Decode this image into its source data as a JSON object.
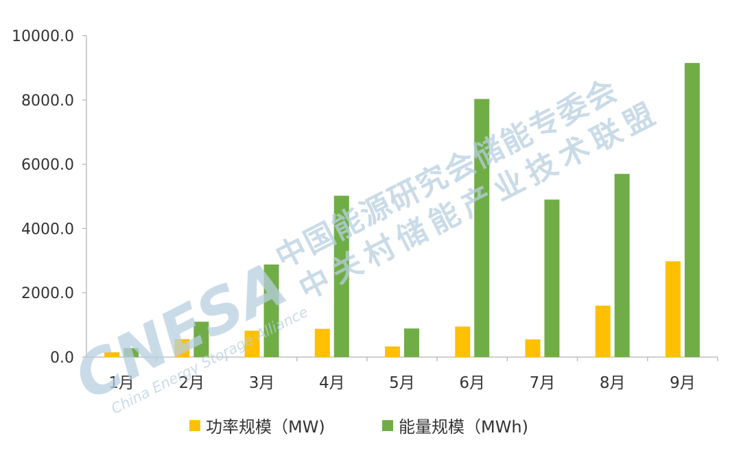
{
  "chart_data": {
    "type": "bar",
    "categories": [
      "1月",
      "2月",
      "3月",
      "4月",
      "5月",
      "6月",
      "7月",
      "8月",
      "9月"
    ],
    "series": [
      {
        "name": "功率规模（MW)",
        "color": "#FFC000",
        "values": [
          150,
          560,
          820,
          880,
          330,
          950,
          550,
          1600,
          2980
        ]
      },
      {
        "name": "能量规模（MWh)",
        "color": "#70AD47",
        "values": [
          280,
          1100,
          2880,
          5020,
          890,
          8030,
          4900,
          5700,
          9150
        ]
      }
    ],
    "yticks": [
      "0.0",
      "2000.0",
      "4000.0",
      "6000.0",
      "8000.0",
      "10000.0"
    ],
    "ylim": [
      0,
      10000
    ],
    "grid": false,
    "legend_position": "bottom",
    "title": "",
    "xlabel": "",
    "ylabel": ""
  },
  "watermark": {
    "logo": "CNESA",
    "line1": "中国能源研究会储能专委会",
    "line2": "中关村储能产业技术联盟",
    "english": "China Energy Storage Alliance",
    "color": "#B8CFE0"
  }
}
